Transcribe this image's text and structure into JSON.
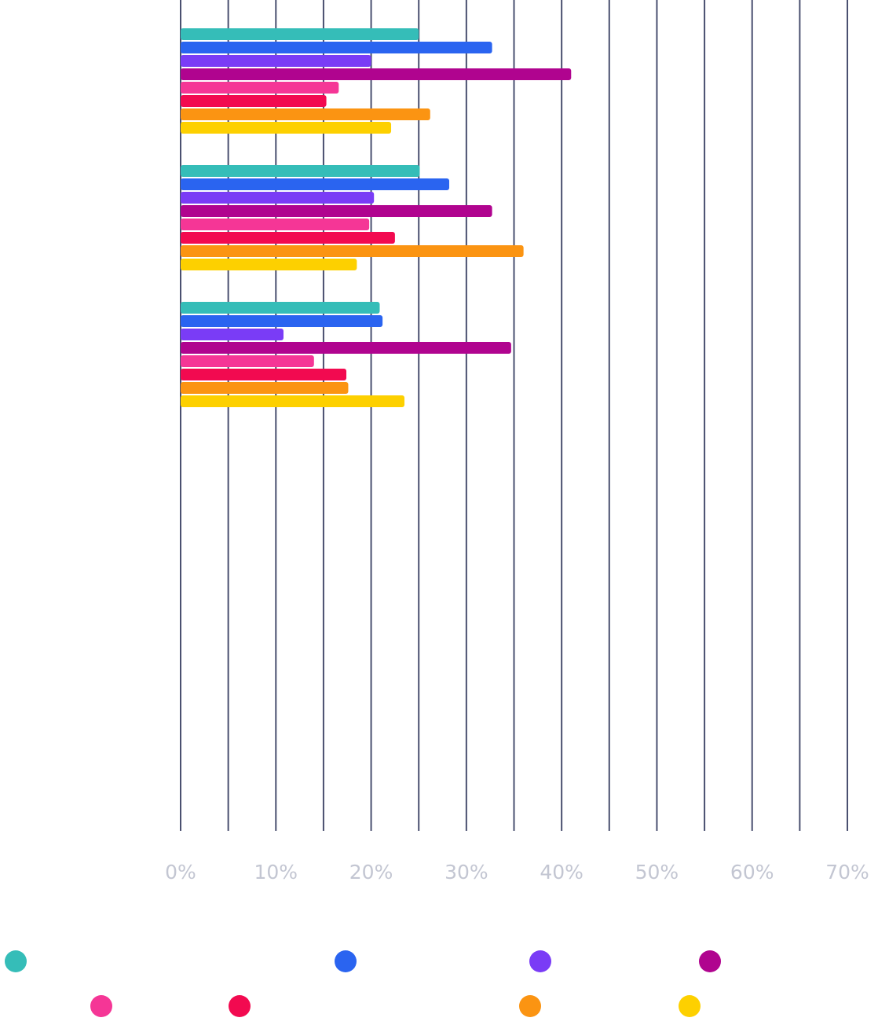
{
  "chart_data": {
    "type": "hbar",
    "categories": [
      null,
      null,
      null
    ],
    "series": [
      {
        "color": "#35bdb8",
        "values": [
          25.0,
          25.1,
          20.9
        ]
      },
      {
        "color": "#2a64f0",
        "values": [
          32.7,
          28.2,
          21.2
        ]
      },
      {
        "color": "#7a3cf6",
        "values": [
          20.0,
          20.3,
          10.8
        ]
      },
      {
        "color": "#b0048f",
        "values": [
          41.0,
          32.7,
          34.7
        ]
      },
      {
        "color": "#f53696",
        "values": [
          16.6,
          19.8,
          14.0
        ]
      },
      {
        "color": "#f20a50",
        "values": [
          15.3,
          22.5,
          17.4
        ]
      },
      {
        "color": "#fb9412",
        "values": [
          26.2,
          36.0,
          17.6
        ]
      },
      {
        "color": "#fdd000",
        "values": [
          22.1,
          18.5,
          23.5
        ]
      }
    ],
    "xlim": [
      0,
      70
    ],
    "xticks": [
      {
        "value": 0,
        "label": "0%"
      },
      {
        "value": 10,
        "label": "10%"
      },
      {
        "value": 20,
        "label": "20%"
      },
      {
        "value": 30,
        "label": "30%"
      },
      {
        "value": 40,
        "label": "40%"
      },
      {
        "value": 50,
        "label": "50%"
      },
      {
        "value": 60,
        "label": "60%"
      },
      {
        "value": 70,
        "label": "70%"
      }
    ],
    "xminorticks": [
      5,
      15,
      25,
      35,
      45,
      55,
      65
    ],
    "grid": true
  }
}
